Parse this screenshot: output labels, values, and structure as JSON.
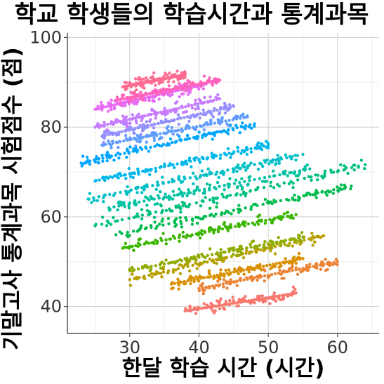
{
  "chart_data": {
    "type": "scatter",
    "title": "학교 학생들의 학습시간과 통계과목",
    "xlabel": "한달 학습 시간 (시간)",
    "ylabel": "기말고사 통계과목 시험점수 (점)",
    "xlim": [
      21,
      66
    ],
    "ylim": [
      34,
      101
    ],
    "x_ticks": [
      30,
      40,
      50,
      60
    ],
    "y_ticks": [
      40,
      60,
      80,
      100
    ],
    "grid": true,
    "legend": "none",
    "groups": [
      {
        "color": "#F8766D",
        "x_range": [
          38,
          54
        ],
        "y_at_start": 39,
        "slope": 0.25
      },
      {
        "color": "#EB8335",
        "x_range": [
          40,
          60
        ],
        "y_at_start": 44,
        "slope": 0.3
      },
      {
        "color": "#D89000",
        "x_range": [
          36,
          55
        ],
        "y_at_start": 45,
        "slope": 0.3
      },
      {
        "color": "#B79F00",
        "x_range": [
          30,
          58
        ],
        "y_at_start": 46,
        "slope": 0.35
      },
      {
        "color": "#8EAB00",
        "x_range": [
          30,
          55
        ],
        "y_at_start": 48,
        "slope": 0.3
      },
      {
        "color": "#39B600",
        "x_range": [
          29,
          54
        ],
        "y_at_start": 53,
        "slope": 0.3
      },
      {
        "color": "#00BB4E",
        "x_range": [
          28,
          62
        ],
        "y_at_start": 56,
        "slope": 0.32
      },
      {
        "color": "#00BF7D",
        "x_range": [
          25,
          64
        ],
        "y_at_start": 58,
        "slope": 0.35
      },
      {
        "color": "#00C1A3",
        "x_range": [
          27,
          56
        ],
        "y_at_start": 62,
        "slope": 0.3
      },
      {
        "color": "#00BFC4",
        "x_range": [
          24,
          55
        ],
        "y_at_start": 64,
        "slope": 0.32
      },
      {
        "color": "#00B7E9",
        "x_range": [
          25,
          50
        ],
        "y_at_start": 68,
        "slope": 0.32
      },
      {
        "color": "#00A5FF",
        "x_range": [
          23,
          48
        ],
        "y_at_start": 72,
        "slope": 0.35
      },
      {
        "color": "#619CFF",
        "x_range": [
          26,
          47
        ],
        "y_at_start": 76,
        "slope": 0.3
      },
      {
        "color": "#9590FF",
        "x_range": [
          26,
          45
        ],
        "y_at_start": 78,
        "slope": 0.35
      },
      {
        "color": "#C77CFF",
        "x_range": [
          25,
          43
        ],
        "y_at_start": 80,
        "slope": 0.35
      },
      {
        "color": "#E76BF3",
        "x_range": [
          25,
          41
        ],
        "y_at_start": 84,
        "slope": 0.35
      },
      {
        "color": "#FF62BC",
        "x_range": [
          28,
          43
        ],
        "y_at_start": 86,
        "slope": 0.3
      },
      {
        "color": "#FF6C91",
        "x_range": [
          29,
          38
        ],
        "y_at_start": 89,
        "slope": 0.3
      }
    ]
  }
}
